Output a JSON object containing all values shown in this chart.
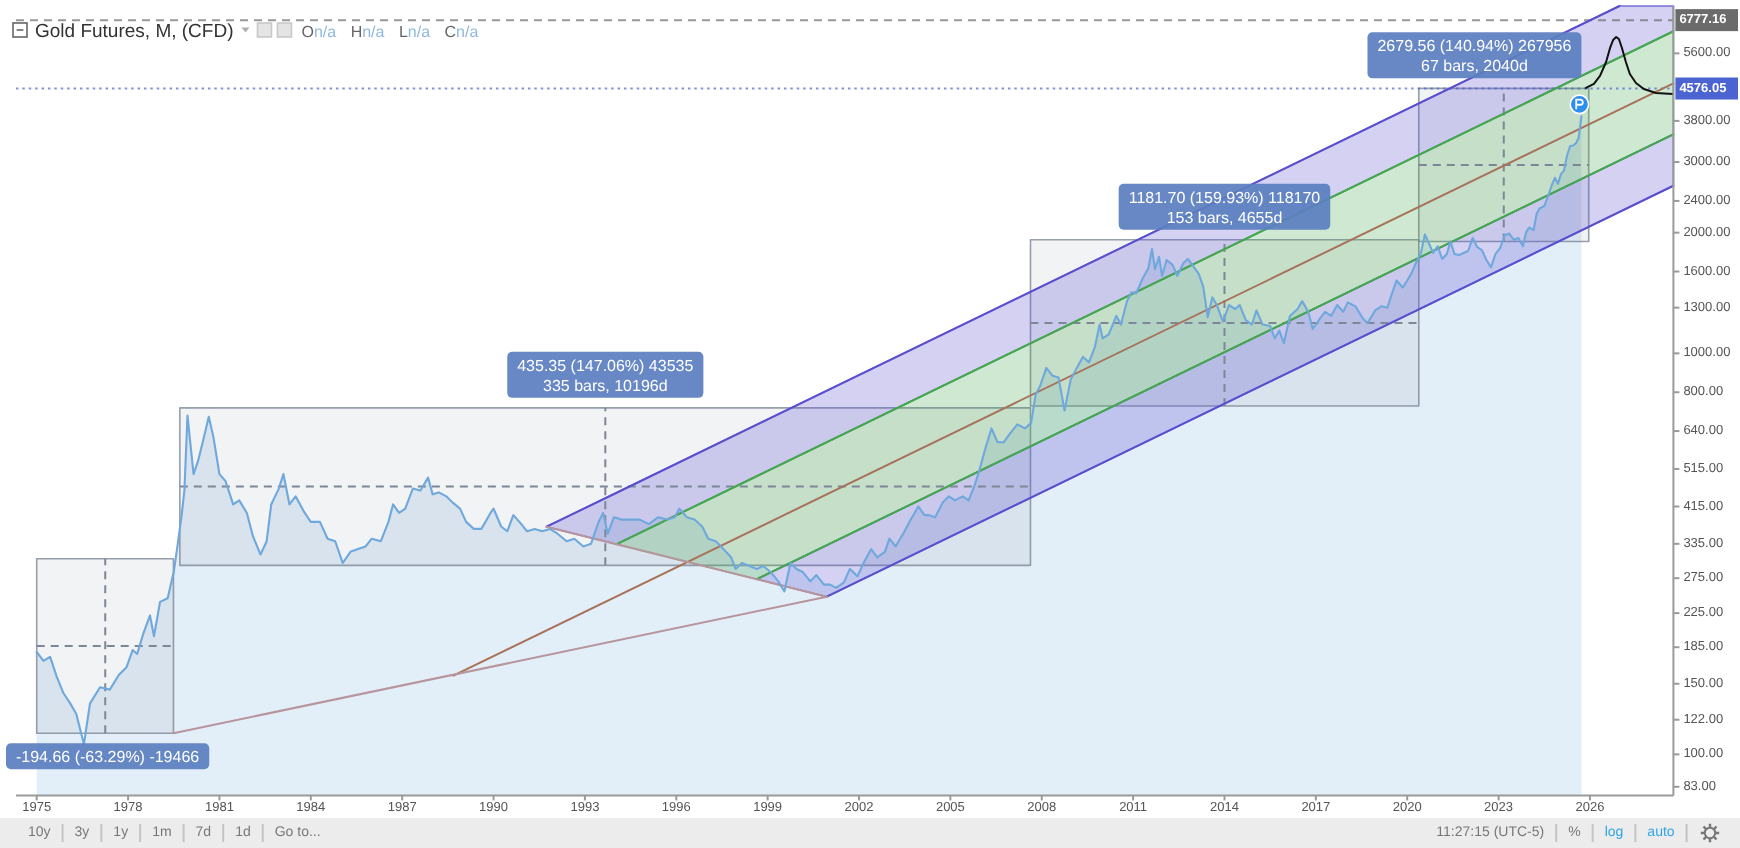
{
  "chart_data": {
    "type": "area",
    "title": "Gold Futures, M, (CFD)",
    "subtitle": "On/a Hn/a Ln/a Cn/a",
    "log": "y",
    "xlim": [
      1974.32,
      2028.74
    ],
    "ylim": [
      79,
      7350
    ],
    "xticks": [
      1975,
      1978,
      1981,
      1984,
      1987,
      1990,
      1993,
      1996,
      1999,
      2002,
      2005,
      2008,
      2011,
      2014,
      2017,
      2020,
      2023,
      2026
    ],
    "yticks": [
      {
        "value": 83,
        "label": "83.00"
      },
      {
        "value": 100,
        "label": "100.00"
      },
      {
        "value": 122,
        "label": "122.00"
      },
      {
        "value": 150,
        "label": "150.00"
      },
      {
        "value": 185,
        "label": "185.00"
      },
      {
        "value": 225,
        "label": "225.00"
      },
      {
        "value": 275,
        "label": "275.00"
      },
      {
        "value": 335,
        "label": "335.00"
      },
      {
        "value": 415,
        "label": "415.00"
      },
      {
        "value": 515,
        "label": "515.00"
      },
      {
        "value": 640,
        "label": "640.00"
      },
      {
        "value": 800,
        "label": "800.00"
      },
      {
        "value": 1000,
        "label": "1000.00"
      },
      {
        "value": 1300,
        "label": "1300.00"
      },
      {
        "value": 1600,
        "label": "1600.00"
      },
      {
        "value": 2000,
        "label": "2000.00"
      },
      {
        "value": 2400,
        "label": "2400.00"
      },
      {
        "value": 3000,
        "label": "3000.00"
      },
      {
        "value": 3800,
        "label": "3800.00"
      },
      {
        "value": 5600,
        "label": "5600.00"
      }
    ],
    "series": [
      {
        "color": "#6fa8dc",
        "x": [
          1975.0,
          1975.22,
          1975.44,
          1975.66,
          1975.88,
          1976.1,
          1976.3,
          1976.55,
          1976.75,
          1977.08,
          1977.4,
          1977.7,
          1977.95,
          1978.15,
          1978.3,
          1978.5,
          1978.72,
          1978.85,
          1979.05,
          1979.3,
          1979.5,
          1979.62,
          1979.75,
          1979.85,
          1979.95,
          1980.15,
          1980.3,
          1980.45,
          1980.65,
          1980.8,
          1981.0,
          1981.2,
          1981.45,
          1981.65,
          1981.9,
          1982.1,
          1982.35,
          1982.55,
          1982.7,
          1982.95,
          1983.1,
          1983.3,
          1983.5,
          1983.8,
          1984.0,
          1984.3,
          1984.55,
          1984.8,
          1985.05,
          1985.3,
          1985.55,
          1985.8,
          1986.0,
          1986.3,
          1986.55,
          1986.7,
          1986.9,
          1987.1,
          1987.35,
          1987.6,
          1987.85,
          1988.0,
          1988.2,
          1988.45,
          1988.65,
          1988.9,
          1989.1,
          1989.35,
          1989.6,
          1989.9,
          1990.0,
          1990.25,
          1990.45,
          1990.65,
          1990.85,
          1991.1,
          1991.35,
          1991.6,
          1991.85,
          1992.1,
          1992.4,
          1992.65,
          1992.95,
          1993.2,
          1993.45,
          1993.6,
          1993.75,
          1993.95,
          1994.2,
          1994.5,
          1994.8,
          1995.1,
          1995.4,
          1995.7,
          1995.95,
          1996.1,
          1996.35,
          1996.6,
          1996.85,
          1997.05,
          1997.3,
          1997.55,
          1997.8,
          1997.95,
          1998.15,
          1998.4,
          1998.65,
          1998.85,
          1999.1,
          1999.35,
          1999.55,
          1999.75,
          1999.95,
          2000.15,
          2000.4,
          2000.6,
          2000.85,
          2001.05,
          2001.25,
          2001.5,
          2001.7,
          2001.95,
          2002.15,
          2002.4,
          2002.6,
          2002.85,
          2003.0,
          2003.2,
          2003.45,
          2003.7,
          2003.95,
          2004.15,
          2004.3,
          2004.5,
          2004.75,
          2004.95,
          2005.15,
          2005.4,
          2005.6,
          2005.8,
          2005.95,
          2006.15,
          2006.35,
          2006.55,
          2006.75,
          2006.95,
          2007.2,
          2007.45,
          2007.65,
          2007.8,
          2007.95,
          2008.15,
          2008.35,
          2008.55,
          2008.75,
          2008.95,
          2009.15,
          2009.35,
          2009.55,
          2009.75,
          2009.9,
          2010.0,
          2010.2,
          2010.45,
          2010.6,
          2010.8,
          2010.95,
          2011.1,
          2011.3,
          2011.5,
          2011.62,
          2011.72,
          2011.85,
          2011.95,
          2012.1,
          2012.3,
          2012.45,
          2012.65,
          2012.8,
          2012.95,
          2013.15,
          2013.3,
          2013.45,
          2013.6,
          2013.75,
          2013.95,
          2014.15,
          2014.35,
          2014.5,
          2014.7,
          2014.9,
          2015.05,
          2015.25,
          2015.5,
          2015.65,
          2015.8,
          2015.95,
          2016.15,
          2016.4,
          2016.55,
          2016.75,
          2016.9,
          2017.1,
          2017.3,
          2017.5,
          2017.7,
          2017.9,
          2018.05,
          2018.3,
          2018.55,
          2018.7,
          2018.95,
          2019.15,
          2019.35,
          2019.5,
          2019.65,
          2019.85,
          2020.0,
          2020.15,
          2020.3,
          2020.45,
          2020.58,
          2020.7,
          2020.85,
          2021.0,
          2021.15,
          2021.3,
          2021.42,
          2021.55,
          2021.7,
          2021.85,
          2022.0,
          2022.15,
          2022.3,
          2022.45,
          2022.6,
          2022.75,
          2022.9,
          2023.05,
          2023.2,
          2023.35,
          2023.5,
          2023.65,
          2023.8,
          2023.9,
          2024.0,
          2024.15,
          2024.25,
          2024.35,
          2024.5,
          2024.6,
          2024.75,
          2024.85,
          2024.95,
          2025.05,
          2025.15,
          2025.25,
          2025.35,
          2025.45,
          2025.55,
          2025.63,
          2025.72
        ],
        "values": [
          180,
          171,
          175,
          156,
          142,
          134,
          126,
          106,
          134,
          147,
          145,
          158,
          165,
          182,
          178,
          200,
          222,
          197,
          240,
          245,
          285,
          330,
          390,
          455,
          700,
          500,
          540,
          600,
          695,
          620,
          500,
          480,
          420,
          430,
          400,
          350,
          315,
          340,
          420,
          460,
          500,
          420,
          440,
          400,
          380,
          380,
          345,
          340,
          300,
          320,
          325,
          330,
          345,
          340,
          380,
          420,
          400,
          410,
          460,
          455,
          490,
          445,
          450,
          440,
          425,
          410,
          380,
          365,
          365,
          400,
          410,
          370,
          360,
          395,
          380,
          360,
          365,
          360,
          365,
          355,
          340,
          345,
          330,
          335,
          380,
          400,
          355,
          390,
          385,
          385,
          385,
          375,
          390,
          385,
          390,
          410,
          390,
          385,
          370,
          345,
          340,
          325,
          310,
          290,
          300,
          295,
          290,
          295,
          285,
          270,
          255,
          300,
          290,
          285,
          270,
          280,
          265,
          265,
          260,
          268,
          290,
          278,
          300,
          325,
          310,
          320,
          345,
          330,
          355,
          385,
          415,
          395,
          395,
          390,
          425,
          440,
          430,
          440,
          430,
          470,
          510,
          580,
          650,
          600,
          600,
          630,
          665,
          650,
          670,
          790,
          830,
          920,
          880,
          870,
          720,
          860,
          920,
          980,
          950,
          1040,
          1180,
          1090,
          1115,
          1240,
          1180,
          1350,
          1420,
          1410,
          1530,
          1630,
          1820,
          1620,
          1740,
          1560,
          1710,
          1660,
          1560,
          1680,
          1720,
          1660,
          1580,
          1470,
          1230,
          1380,
          1320,
          1200,
          1320,
          1290,
          1320,
          1210,
          1180,
          1280,
          1180,
          1170,
          1090,
          1140,
          1060,
          1240,
          1290,
          1350,
          1270,
          1150,
          1210,
          1270,
          1240,
          1320,
          1270,
          1340,
          1310,
          1220,
          1190,
          1280,
          1310,
          1300,
          1410,
          1520,
          1460,
          1520,
          1590,
          1690,
          1780,
          1980,
          1890,
          1780,
          1850,
          1720,
          1770,
          1900,
          1770,
          1760,
          1780,
          1800,
          1940,
          1840,
          1810,
          1710,
          1640,
          1770,
          1830,
          1970,
          1990,
          1920,
          1940,
          1850,
          2000,
          2060,
          2030,
          2230,
          2300,
          2330,
          2440,
          2630,
          2740,
          2650,
          2800,
          2860,
          3120,
          3290,
          3300,
          3350,
          3450,
          3900
        ]
      },
      {
        "type": "line",
        "line_style": "dashed",
        "color": "#7d8797",
        "x": [
          1975.0,
          1979.49
        ],
        "values": [
          186.3,
          186.3
        ],
        "lower": [
          112.9,
          112.9
        ],
        "upper": [
          307.56,
          307.56
        ]
      },
      {
        "type": "line",
        "line_style": "dashed",
        "color": "#7d8797",
        "x": [
          1979.7,
          2007.63
        ],
        "values": [
          465.3,
          465.3
        ],
        "lower": [
          296.04,
          296.04
        ],
        "upper": [
          731.39,
          731.39
        ]
      },
      {
        "type": "line",
        "line_style": "dashed",
        "color": "#7d8797",
        "x": [
          2007.63,
          2020.38
        ],
        "values": [
          1191.3,
          1191.3
        ],
        "lower": [
          738.9,
          738.9
        ],
        "upper": [
          1920.6,
          1920.6
        ]
      },
      {
        "type": "line",
        "line_style": "dashed",
        "color": "#7d8797",
        "x": [
          2020.38,
          2025.96
        ],
        "values": [
          2951.1,
          2951.1
        ],
        "lower": [
          1901.2,
          1901.2
        ],
        "upper": [
          4580.8,
          4580.8
        ]
      },
      {
        "type": "line",
        "line_style": "dashed",
        "color": "#7d8797",
        "x": [
          1977.25,
          1977.25
        ],
        "values": [
          112.9,
          307.56
        ]
      },
      {
        "type": "line",
        "line_style": "dashed",
        "color": "#7d8797",
        "x": [
          1993.67,
          1993.67
        ],
        "values": [
          296.04,
          731.39
        ]
      },
      {
        "type": "line",
        "line_style": "dashed",
        "color": "#7d8797",
        "x": [
          2014.0,
          2014.0
        ],
        "values": [
          738.9,
          1920.6
        ]
      },
      {
        "type": "line",
        "line_style": "dashed",
        "color": "#7d8797",
        "x": [
          2023.17,
          2023.17
        ],
        "values": [
          1901.2,
          4580.8
        ]
      },
      {
        "type": "line",
        "color": "#5a4fcf",
        "x": [
          1991.74,
          1994.04,
          2026.97,
          2028.74
        ],
        "values": [
          369.6,
          449.2,
          7350,
          null
        ],
        "lower": [
          369.6,
          334.3,
          5471,
          6358
        ],
        "upper": [
          369.6,
          449.2,
          7350,
          7350
        ]
      },
      {
        "type": "line",
        "color": "#45a84e",
        "x": [
          1994.04,
          1998.64,
          2028.74
        ],
        "values": [
          334.3,
          493.8,
          6358
        ],
        "lower": [
          334.3,
          273.4,
          3518
        ],
        "upper": [
          334.3,
          493.8,
          6358
        ]
      },
      {
        "type": "line",
        "color": "#5a4fcf",
        "x": [
          1998.64,
          2000.94,
          2028.74
        ],
        "values": [
          null,
          247.3,
          2618
        ],
        "lower": [
          273.4,
          247.3,
          2618
        ],
        "upper": [
          273.4,
          332.3,
          3518
        ]
      },
      {
        "type": "line",
        "color": "#45a84e",
        "x": [
          1998.64,
          2028.74
        ],
        "values": [
          273.4,
          3518
        ]
      },
      {
        "type": "line",
        "color": "#a8725a",
        "x": [
          1988.68,
          2028.74
        ],
        "values": [
          157.2,
          4712
        ]
      },
      {
        "type": "line",
        "color": "#b8949c",
        "x": [
          1991.74,
          2000.94
        ],
        "values": [
          369.6,
          247.3
        ]
      },
      {
        "type": "line",
        "color": "#b8949c",
        "x": [
          1979.49,
          2000.94
        ],
        "values": [
          112.9,
          247.3
        ]
      },
      {
        "type": "line",
        "color": "#111111",
        "x": [
          2025.87,
          2026.13,
          2026.33,
          2026.53,
          2026.66,
          2026.76,
          2026.86,
          2026.95,
          2027.05,
          2027.18,
          2027.31,
          2027.51,
          2027.77,
          2028.17,
          2028.73
        ],
        "values": [
          4591,
          4697,
          4918,
          5329,
          5776,
          6047,
          6153,
          6083,
          5776,
          5329,
          4975,
          4724,
          4565,
          4461,
          4436
        ]
      }
    ],
    "ref_lines": [
      {
        "axis": "y",
        "value": 6777.16,
        "label": "6777.16",
        "color": "#6b6b6b",
        "line_style": "dashed"
      },
      {
        "axis": "y",
        "value": 4576.05,
        "label": "4576.05",
        "color": "#4c63d2",
        "line_style": "dotted"
      }
    ],
    "annotations": [
      {
        "text": "-194.66 (-63.29%) -19466",
        "x": 1977.25,
        "y": 112.9
      },
      {
        "text": "435.35 (147.06%) 43535\n335 bars, 10196d",
        "x": 1993.67,
        "y": 731.39
      },
      {
        "text": "1181.70 (159.93%) 118170\n153 bars, 4655d",
        "x": 2014.0,
        "y": 1920.6
      },
      {
        "text": "2679.56 (140.94%) 267956\n67 bars, 2040d",
        "x": 2023.17,
        "y": 4580.8
      },
      "10y",
      "3y",
      "1y",
      "1m",
      "7d",
      "1d",
      "Go to...",
      "11:27:15 (UTC-5)",
      "%",
      "log",
      "auto"
    ]
  }
}
